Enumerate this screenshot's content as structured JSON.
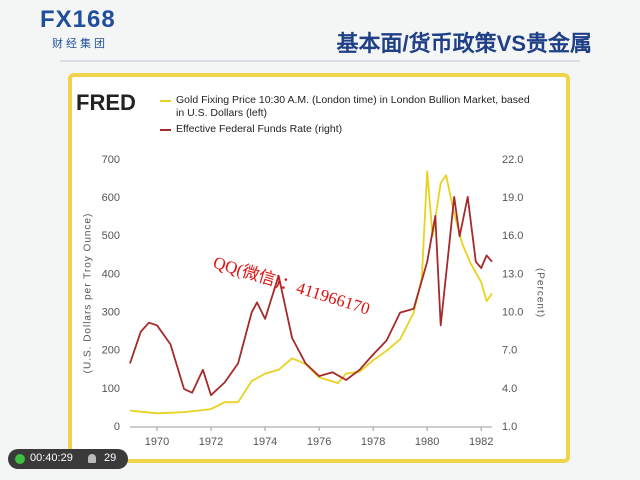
{
  "slide": {
    "logo": "FX168",
    "logo_sub": "财经集团",
    "title": "基本面/货币政策VS贵金属",
    "watermark": "QQ(微信)：411966170",
    "timer": "00:40:29",
    "viewers": "29"
  },
  "chart_data": {
    "type": "line",
    "brand": "FRED",
    "y_label": "(U.S. Dollars per Troy Ounce)",
    "y2_label": "(Percent)",
    "xlim": [
      1969,
      1982.4
    ],
    "xticks": [
      1970,
      1972,
      1974,
      1976,
      1978,
      1980,
      1982
    ],
    "ylim": [
      0,
      700
    ],
    "yticks": [
      0,
      100,
      200,
      300,
      400,
      500,
      600,
      700
    ],
    "y2lim": [
      1,
      22
    ],
    "y2ticks": [
      {
        "value": 1,
        "label": "1.0"
      },
      {
        "value": 4,
        "label": "4.0"
      },
      {
        "value": 7,
        "label": "7.0"
      },
      {
        "value": 10,
        "label": "10.0"
      },
      {
        "value": 13,
        "label": "13.0"
      },
      {
        "value": 16,
        "label": "16.0"
      },
      {
        "value": 19,
        "label": "19.0"
      },
      {
        "value": 22,
        "label": "22.0"
      }
    ],
    "grid": false,
    "series": [
      {
        "name": "Gold Fixing Price 10:30 A.M. (London time) in London Bullion Market, based in U.S. Dollars (left)",
        "color": "#e9d21f",
        "x": [
          1969,
          1970,
          1971,
          1972,
          1972.5,
          1973,
          1973.5,
          1974,
          1974.5,
          1975,
          1975.5,
          1976,
          1976.7,
          1977,
          1977.5,
          1978,
          1978.5,
          1979,
          1979.5,
          1979.8,
          1980,
          1980.2,
          1980.5,
          1980.7,
          1981,
          1981.3,
          1981.6,
          1982,
          1982.2,
          1982.4
        ],
        "values": [
          43,
          36,
          39,
          47,
          65,
          65,
          120,
          140,
          150,
          180,
          165,
          130,
          115,
          140,
          145,
          175,
          200,
          230,
          300,
          390,
          670,
          500,
          640,
          660,
          560,
          480,
          430,
          380,
          330,
          350
        ]
      },
      {
        "name": "Effective Federal Funds Rate (right)",
        "color": "#a52a2a",
        "axis": "y2",
        "x": [
          1969,
          1969.4,
          1969.7,
          1970,
          1970.5,
          1971,
          1971.3,
          1971.7,
          1972,
          1972.5,
          1973,
          1973.5,
          1973.7,
          1974,
          1974.5,
          1975,
          1975.5,
          1976,
          1976.5,
          1977,
          1977.5,
          1978,
          1978.5,
          1979,
          1979.5,
          1980,
          1980.3,
          1980.5,
          1980.8,
          1981,
          1981.2,
          1981.5,
          1981.8,
          1982,
          1982.2,
          1982.4
        ],
        "values": [
          6,
          8.5,
          9.2,
          9,
          7.5,
          4,
          3.7,
          5.5,
          3.5,
          4.5,
          6,
          10,
          10.8,
          9.5,
          12.9,
          8,
          6,
          5,
          5.3,
          4.7,
          5.5,
          6.7,
          7.8,
          10,
          10.3,
          14,
          17.6,
          9,
          15,
          19.1,
          16,
          19.1,
          14,
          13.5,
          14.5,
          14
        ]
      }
    ]
  }
}
